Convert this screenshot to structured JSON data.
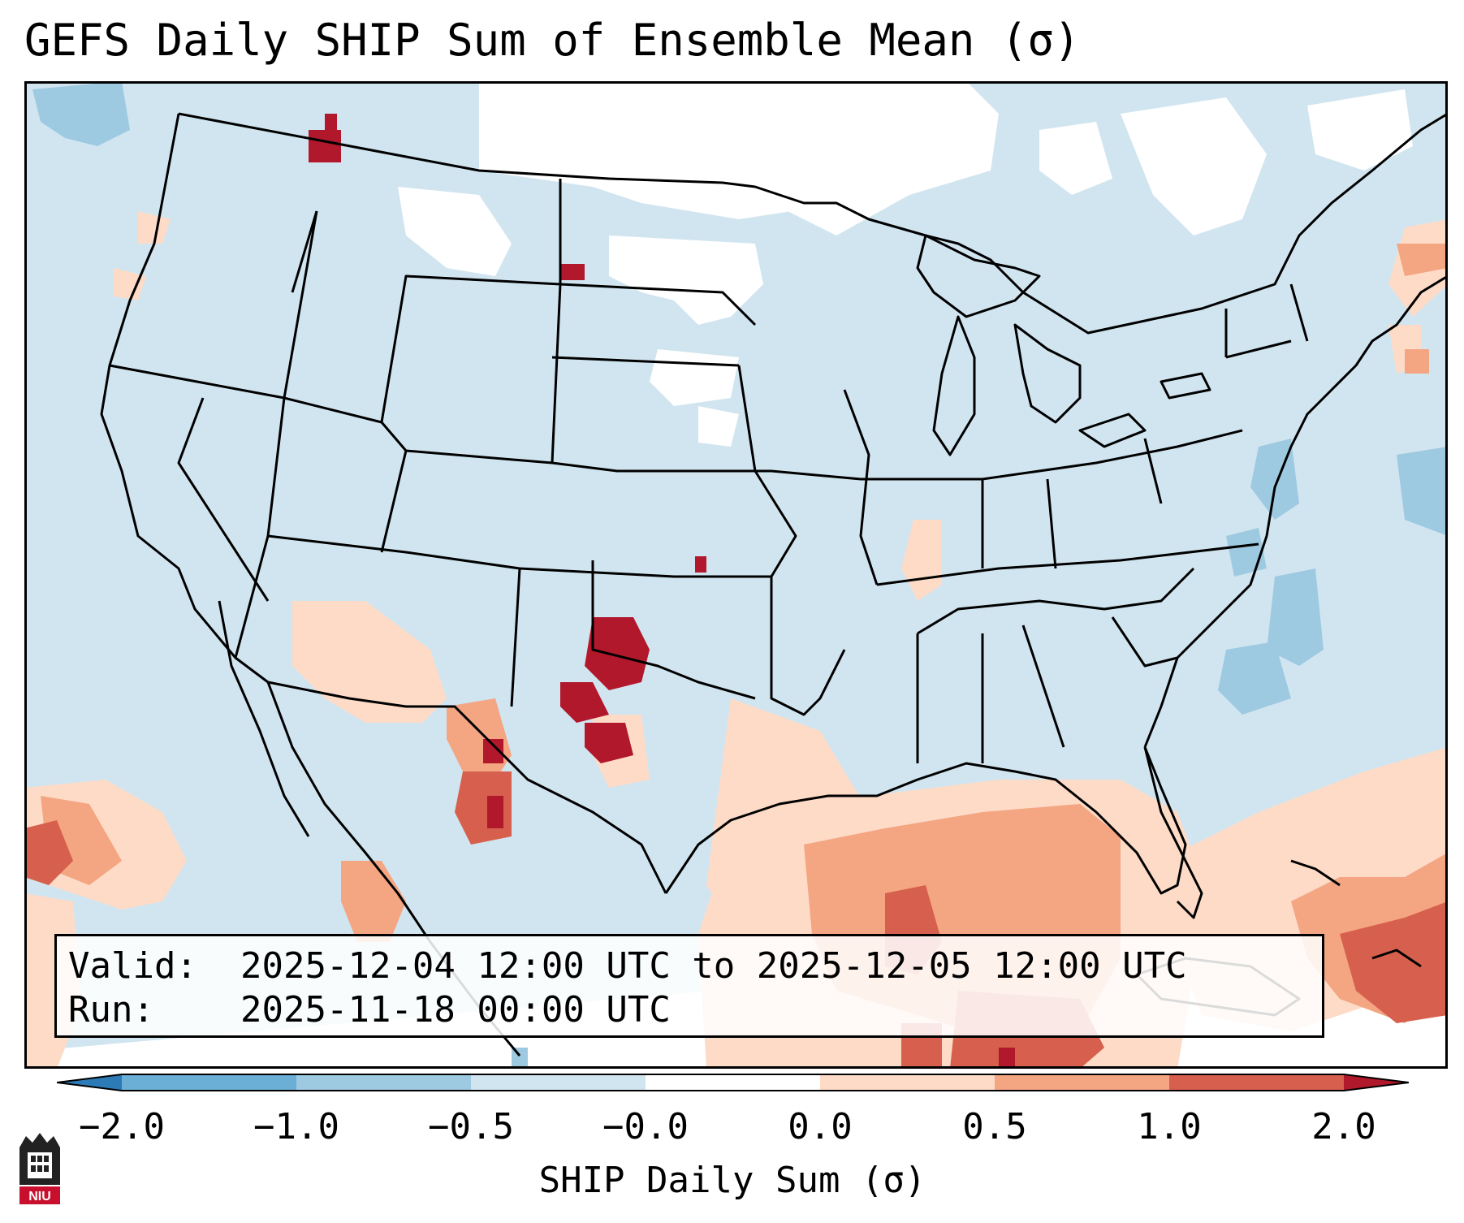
{
  "title": "GEFS Daily SHIP Sum of Ensemble Mean (σ)",
  "info": {
    "valid_key": "Valid:",
    "valid_value": "2025-12-04 12:00 UTC to 2025-12-05 12:00 UTC",
    "run_key": "Run:",
    "run_value": "2025-11-18 00:00 UTC"
  },
  "colorbar": {
    "label": "SHIP Daily Sum (σ)",
    "ticks": [
      "−2.0",
      "−1.0",
      "−0.5",
      "−0.0",
      "0.0",
      "0.5",
      "1.0",
      "2.0"
    ],
    "colors": [
      "#2c7bb6",
      "#6baed6",
      "#9ecae1",
      "#d1e5f0",
      "#ffffff",
      "#fddbc7",
      "#f4a582",
      "#d6604d",
      "#b2182b"
    ],
    "under_color": "#2c7bb6",
    "over_color": "#b2182b"
  },
  "map": {
    "background_color": "#d1e5f0",
    "neutral_color": "#ffffff"
  },
  "logo": {
    "text": "NIU",
    "icon": "niu-logo-icon"
  }
}
